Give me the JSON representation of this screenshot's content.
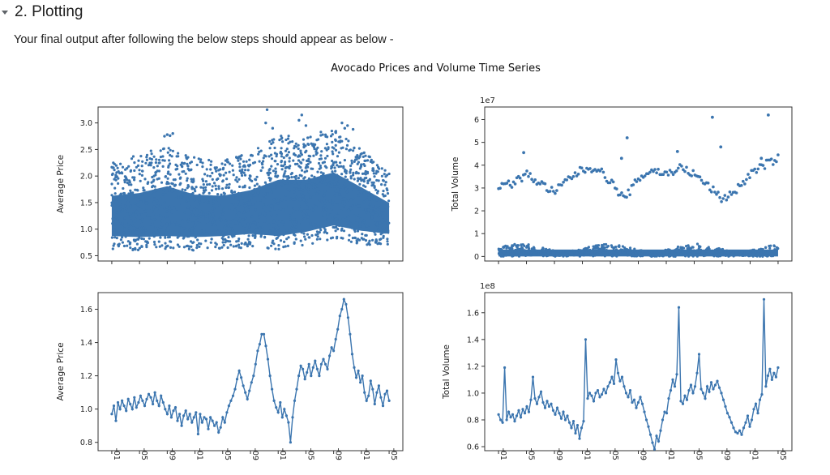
{
  "section": {
    "title": "2. Plotting",
    "caret_icon": "caret-down-icon"
  },
  "description": "Your final output after following the below steps should appear as below -",
  "figure_title": "Avocado Prices and Volume Time Series",
  "colors": {
    "series": "#3b75af"
  },
  "x_tick_labels": [
    "-01",
    "-05",
    "-09",
    "-01",
    "-05",
    "-09",
    "-01",
    "-05",
    "-09",
    "-01",
    "-05"
  ],
  "chart_data": [
    {
      "type": "scatter",
      "xlabel": "",
      "ylabel": "Average Price",
      "ylim": [
        0.4,
        3.3
      ],
      "yticks": [
        0.5,
        1.0,
        1.5,
        2.0,
        2.5,
        3.0
      ],
      "ytick_labels": [
        "0.5",
        "1.0",
        "1.5",
        "2.0",
        "2.5",
        "3.0"
      ],
      "band": [
        {
          "t": 0.0,
          "lo": 0.62,
          "hi": 2.3
        },
        {
          "t": 0.1,
          "lo": 0.6,
          "hi": 2.4
        },
        {
          "t": 0.2,
          "lo": 0.62,
          "hi": 2.6
        },
        {
          "t": 0.3,
          "lo": 0.6,
          "hi": 2.35
        },
        {
          "t": 0.4,
          "lo": 0.62,
          "hi": 2.3
        },
        {
          "t": 0.5,
          "lo": 0.66,
          "hi": 2.45
        },
        {
          "t": 0.6,
          "lo": 0.62,
          "hi": 2.8
        },
        {
          "t": 0.7,
          "lo": 0.7,
          "hi": 2.75
        },
        {
          "t": 0.8,
          "lo": 0.82,
          "hi": 2.9
        },
        {
          "t": 0.9,
          "lo": 0.72,
          "hi": 2.5
        },
        {
          "t": 1.0,
          "lo": 0.66,
          "hi": 2.05
        }
      ],
      "outliers": [
        {
          "t": 0.19,
          "y": 2.75
        },
        {
          "t": 0.2,
          "y": 2.78
        },
        {
          "t": 0.21,
          "y": 2.76
        },
        {
          "t": 0.22,
          "y": 2.8
        },
        {
          "t": 0.555,
          "y": 3.0
        },
        {
          "t": 0.56,
          "y": 3.25
        },
        {
          "t": 0.58,
          "y": 2.9
        },
        {
          "t": 0.685,
          "y": 3.15
        },
        {
          "t": 0.675,
          "y": 3.05
        },
        {
          "t": 0.7,
          "y": 2.95
        },
        {
          "t": 0.83,
          "y": 3.0
        },
        {
          "t": 0.85,
          "y": 2.95
        },
        {
          "t": 0.84,
          "y": 2.9
        },
        {
          "t": 0.87,
          "y": 2.88
        }
      ]
    },
    {
      "type": "scatter",
      "xlabel": "",
      "ylabel": "Total Volume",
      "offset_text": "1e7",
      "ylim": [
        -0.2,
        6.55
      ],
      "yticks": [
        0,
        1,
        2,
        3,
        4,
        5,
        6
      ],
      "ytick_labels": [
        "0",
        "1",
        "2",
        "3",
        "4",
        "5",
        "6"
      ],
      "trend": [
        {
          "t": 0.0,
          "y": 3.1
        },
        {
          "t": 0.05,
          "y": 3.2
        },
        {
          "t": 0.1,
          "y": 3.6
        },
        {
          "t": 0.15,
          "y": 3.2
        },
        {
          "t": 0.2,
          "y": 2.8
        },
        {
          "t": 0.25,
          "y": 3.4
        },
        {
          "t": 0.3,
          "y": 3.8
        },
        {
          "t": 0.35,
          "y": 3.9
        },
        {
          "t": 0.4,
          "y": 3.3
        },
        {
          "t": 0.45,
          "y": 2.5
        },
        {
          "t": 0.5,
          "y": 3.4
        },
        {
          "t": 0.55,
          "y": 3.8
        },
        {
          "t": 0.6,
          "y": 3.6
        },
        {
          "t": 0.65,
          "y": 3.9
        },
        {
          "t": 0.7,
          "y": 3.6
        },
        {
          "t": 0.75,
          "y": 3.1
        },
        {
          "t": 0.8,
          "y": 2.5
        },
        {
          "t": 0.85,
          "y": 2.9
        },
        {
          "t": 0.9,
          "y": 3.6
        },
        {
          "t": 0.95,
          "y": 4.0
        },
        {
          "t": 1.0,
          "y": 4.3
        }
      ],
      "outliers": [
        {
          "t": 0.09,
          "y": 4.55
        },
        {
          "t": 0.46,
          "y": 5.2
        },
        {
          "t": 0.64,
          "y": 4.6
        },
        {
          "t": 0.765,
          "y": 6.1
        },
        {
          "t": 0.795,
          "y": 4.8
        },
        {
          "t": 0.965,
          "y": 6.2
        },
        {
          "t": 0.44,
          "y": 4.3
        },
        {
          "t": 0.94,
          "y": 4.3
        }
      ],
      "band_lo": 0.0,
      "band_hi": 0.55
    },
    {
      "type": "line",
      "xlabel": "",
      "ylabel": "Average Price",
      "ylim": [
        0.75,
        1.7
      ],
      "yticks": [
        0.8,
        1.0,
        1.2,
        1.4,
        1.6
      ],
      "ytick_labels": [
        "0.8",
        "1.0",
        "1.2",
        "1.4",
        "1.6"
      ],
      "values": [
        0.97,
        1.02,
        0.93,
        1.04,
        1.0,
        1.05,
        1.02,
        0.99,
        1.06,
        1.03,
        1.0,
        1.07,
        1.01,
        1.04,
        1.08,
        1.05,
        1.02,
        1.06,
        1.09,
        1.07,
        1.03,
        1.1,
        1.05,
        1.02,
        1.08,
        1.04,
        1.0,
        0.97,
        1.02,
        0.95,
        0.99,
        1.01,
        0.93,
        0.97,
        0.9,
        0.96,
        0.99,
        0.94,
        0.97,
        0.92,
        0.95,
        0.98,
        0.85,
        0.97,
        0.92,
        0.95,
        0.94,
        0.88,
        0.95,
        0.93,
        0.9,
        0.92,
        0.86,
        0.89,
        0.95,
        0.92,
        0.98,
        1.02,
        1.05,
        1.08,
        1.12,
        1.18,
        1.23,
        1.19,
        1.14,
        1.1,
        1.06,
        1.11,
        1.16,
        1.2,
        1.27,
        1.35,
        1.39,
        1.45,
        1.45,
        1.38,
        1.3,
        1.2,
        1.12,
        1.05,
        1.01,
        0.98,
        1.04,
        0.95,
        1.0,
        0.96,
        0.92,
        0.8,
        0.95,
        1.05,
        1.12,
        1.2,
        1.26,
        1.24,
        1.18,
        1.22,
        1.27,
        1.2,
        1.25,
        1.29,
        1.24,
        1.2,
        1.27,
        1.3,
        1.27,
        1.24,
        1.32,
        1.37,
        1.35,
        1.42,
        1.48,
        1.56,
        1.6,
        1.66,
        1.63,
        1.55,
        1.45,
        1.33,
        1.25,
        1.19,
        1.23,
        1.16,
        1.2,
        1.1,
        1.05,
        1.08,
        1.17,
        1.12,
        1.03,
        1.1,
        1.14,
        1.07,
        1.02,
        1.09,
        1.11,
        1.05
      ]
    },
    {
      "type": "line",
      "xlabel": "",
      "ylabel": "Total Volume",
      "offset_text": "1e8",
      "ylim": [
        0.57,
        1.75
      ],
      "yticks": [
        0.6,
        0.8,
        1.0,
        1.2,
        1.4,
        1.6
      ],
      "ytick_labels": [
        "0.6",
        "0.8",
        "1.0",
        "1.2",
        "1.4",
        "1.6"
      ],
      "values": [
        0.84,
        0.8,
        0.78,
        1.19,
        0.8,
        0.86,
        0.82,
        0.84,
        0.79,
        0.83,
        0.87,
        0.82,
        0.88,
        0.85,
        0.9,
        0.86,
        0.95,
        1.12,
        0.96,
        0.92,
        0.97,
        1.01,
        0.93,
        0.89,
        0.94,
        0.9,
        0.92,
        0.87,
        0.84,
        0.89,
        0.85,
        0.81,
        0.86,
        0.8,
        0.83,
        0.78,
        0.74,
        0.79,
        0.7,
        0.76,
        0.66,
        0.74,
        0.79,
        1.4,
        0.96,
        1.0,
        0.98,
        0.94,
        1.0,
        1.02,
        0.97,
        0.99,
        1.03,
        1.0,
        1.05,
        1.08,
        1.12,
        1.07,
        1.25,
        1.15,
        1.09,
        1.12,
        1.05,
        1.0,
        0.97,
        1.02,
        0.93,
        0.95,
        0.89,
        0.93,
        0.97,
        0.92,
        0.86,
        0.8,
        0.75,
        0.69,
        0.63,
        0.58,
        0.68,
        0.64,
        0.72,
        0.8,
        0.86,
        0.85,
        0.96,
        1.02,
        1.1,
        1.05,
        1.14,
        1.64,
        0.94,
        0.92,
        0.98,
        0.95,
        1.02,
        1.06,
        1.0,
        1.05,
        1.15,
        1.29,
        1.03,
        1.0,
        0.96,
        1.05,
        1.01,
        1.08,
        1.03,
        1.06,
        1.09,
        1.04,
        1.0,
        0.95,
        0.9,
        0.85,
        0.82,
        0.78,
        0.74,
        0.71,
        0.7,
        0.72,
        0.69,
        0.74,
        0.78,
        0.83,
        0.75,
        0.8,
        0.88,
        0.92,
        0.85,
        0.95,
        0.99,
        1.7,
        1.05,
        1.13,
        1.18,
        1.1,
        1.15,
        1.12,
        1.19
      ]
    }
  ]
}
